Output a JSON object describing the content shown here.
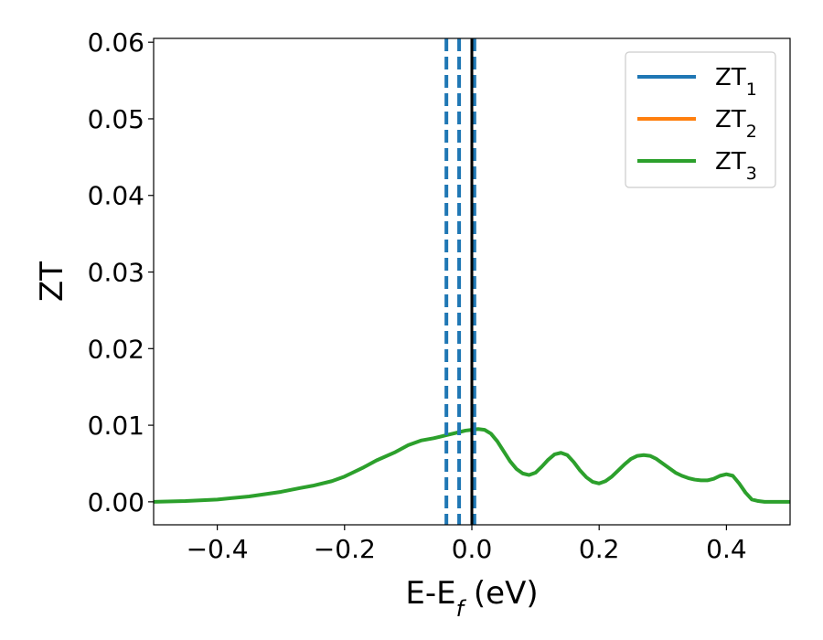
{
  "chart_data": {
    "type": "line",
    "xlabel_main": "E-E",
    "xlabel_sub": "f",
    "xlabel_unit": " (eV)",
    "ylabel": "ZT",
    "xlim": [
      -0.5,
      0.5
    ],
    "ylim": [
      -0.003,
      0.0605
    ],
    "xticks": [
      -0.4,
      -0.2,
      0.0,
      0.2,
      0.4
    ],
    "xtick_labels": [
      "−0.4",
      "−0.2",
      "0.0",
      "0.2",
      "0.4"
    ],
    "yticks": [
      0.0,
      0.01,
      0.02,
      0.03,
      0.04,
      0.05,
      0.06
    ],
    "ytick_labels": [
      "0.00",
      "0.01",
      "0.02",
      "0.03",
      "0.04",
      "0.05",
      "0.06"
    ],
    "legend_position": "top-right",
    "series": [
      {
        "name": "ZT",
        "name_sub": "1",
        "color": "#1f77b4",
        "x": [],
        "y": []
      },
      {
        "name": "ZT",
        "name_sub": "2",
        "color": "#ff7f0e",
        "x": [],
        "y": []
      },
      {
        "name": "ZT",
        "name_sub": "3",
        "color": "#2ca02c",
        "x": [
          -0.5,
          -0.45,
          -0.4,
          -0.35,
          -0.3,
          -0.27,
          -0.25,
          -0.22,
          -0.2,
          -0.17,
          -0.15,
          -0.12,
          -0.1,
          -0.08,
          -0.06,
          -0.05,
          -0.04,
          -0.03,
          -0.02,
          -0.01,
          0.0,
          0.01,
          0.02,
          0.03,
          0.04,
          0.05,
          0.06,
          0.07,
          0.08,
          0.09,
          0.1,
          0.11,
          0.12,
          0.13,
          0.14,
          0.15,
          0.16,
          0.17,
          0.18,
          0.19,
          0.2,
          0.21,
          0.22,
          0.23,
          0.24,
          0.25,
          0.26,
          0.27,
          0.28,
          0.29,
          0.3,
          0.31,
          0.32,
          0.33,
          0.34,
          0.35,
          0.36,
          0.37,
          0.38,
          0.39,
          0.4,
          0.41,
          0.42,
          0.43,
          0.44,
          0.45,
          0.46,
          0.47,
          0.48,
          0.5
        ],
        "y": [
          0.0,
          0.0001,
          0.0003,
          0.0007,
          0.0013,
          0.0018,
          0.0021,
          0.0027,
          0.0033,
          0.0045,
          0.0054,
          0.0065,
          0.0074,
          0.008,
          0.0083,
          0.0085,
          0.0087,
          0.0089,
          0.0091,
          0.0093,
          0.0094,
          0.0095,
          0.0094,
          0.0089,
          0.0079,
          0.0066,
          0.0053,
          0.0043,
          0.0037,
          0.0035,
          0.0038,
          0.0046,
          0.0055,
          0.0062,
          0.0064,
          0.0061,
          0.0052,
          0.0041,
          0.0032,
          0.0026,
          0.0024,
          0.0027,
          0.0033,
          0.0041,
          0.0049,
          0.0056,
          0.006,
          0.0061,
          0.006,
          0.0056,
          0.005,
          0.0044,
          0.0038,
          0.0034,
          0.0031,
          0.0029,
          0.0028,
          0.0028,
          0.003,
          0.0034,
          0.0036,
          0.0034,
          0.0024,
          0.0012,
          0.0003,
          0.0001,
          0.0,
          0.0,
          0.0,
          0.0
        ]
      }
    ],
    "vlines": [
      {
        "x": -0.04,
        "style": "dashed",
        "color": "#1f77b4"
      },
      {
        "x": -0.02,
        "style": "dashed",
        "color": "#1f77b4"
      },
      {
        "x": 0.004,
        "style": "dashed",
        "color": "#1f77b4"
      },
      {
        "x": 0.0,
        "style": "solid",
        "color": "#000000"
      }
    ]
  }
}
